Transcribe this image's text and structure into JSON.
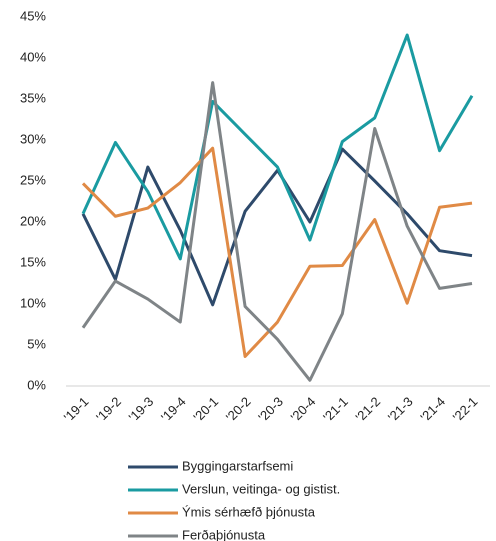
{
  "chart_data": {
    "type": "line",
    "categories": [
      "'19-1",
      "'19-2",
      "'19-3",
      "'19-4",
      "'20-1",
      "'20-2",
      "'20-3",
      "'20-4",
      "'21-1",
      "'21-2",
      "'21-3",
      "'21-4",
      "'22-1"
    ],
    "series": [
      {
        "name": "Byggingarstarfsemi",
        "color": "#2e4a6b",
        "values": [
          21,
          13,
          26.7,
          19,
          9.9,
          21.3,
          26.3,
          20,
          28.9,
          25,
          21,
          16.5,
          15.9
        ]
      },
      {
        "name": "Verslun,  veitinga- og gistist.",
        "color": "#1a9ba1",
        "values": [
          21,
          29.7,
          23.7,
          15.5,
          34.7,
          30.7,
          26.7,
          17.8,
          29.8,
          32.7,
          42.8,
          28.7,
          35.4
        ]
      },
      {
        "name": "Ýmis sérhæfð þjónusta",
        "color": "#e08a45",
        "values": [
          24.7,
          20.7,
          21.7,
          24.8,
          29,
          3.6,
          7.8,
          14.6,
          14.7,
          20.3,
          10.1,
          21.8,
          22.3
        ]
      },
      {
        "name": "Ferðaþjónusta",
        "color": "#7f8487",
        "values": [
          7.1,
          12.8,
          10.6,
          7.8,
          37,
          9.7,
          5.7,
          0.7,
          8.8,
          31.4,
          19.5,
          11.9,
          12.5
        ]
      }
    ],
    "ylim": [
      0,
      45
    ],
    "yticks": [
      {
        "value": 0,
        "label": "0%"
      },
      {
        "value": 5,
        "label": "5%"
      },
      {
        "value": 10,
        "label": "10%"
      },
      {
        "value": 15,
        "label": "15%"
      },
      {
        "value": 20,
        "label": "20%"
      },
      {
        "value": 25,
        "label": "25%"
      },
      {
        "value": 30,
        "label": "30%"
      },
      {
        "value": 35,
        "label": "35%"
      },
      {
        "value": 40,
        "label": "40%"
      },
      {
        "value": 45,
        "label": "45%"
      }
    ],
    "grid": false,
    "legend": "bottom"
  }
}
